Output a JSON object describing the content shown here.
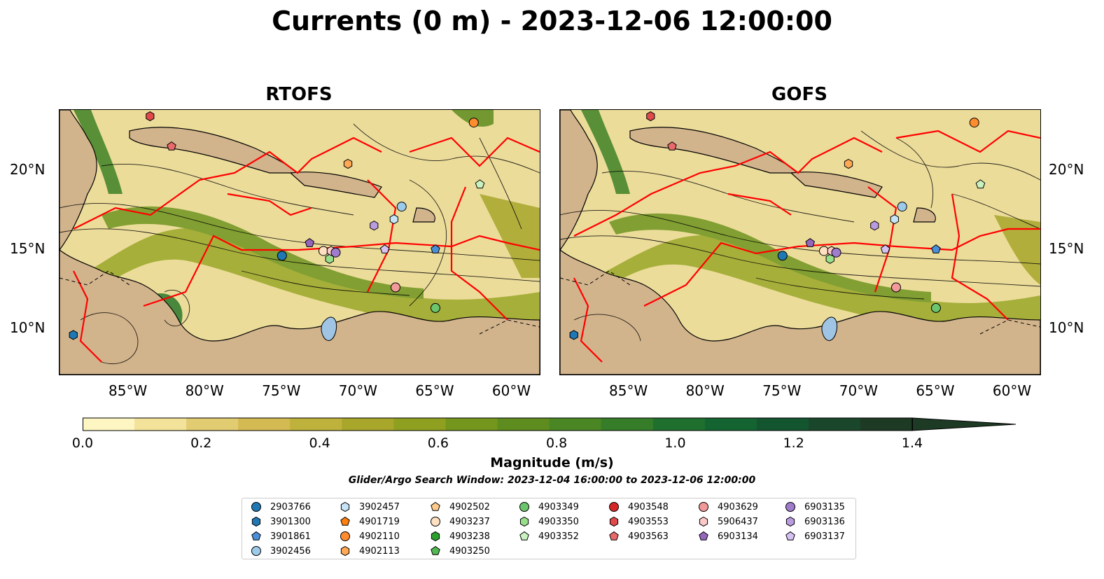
{
  "title": "Currents (0 m) - 2023-12-06 12:00:00",
  "panels": [
    {
      "id": "rtofs",
      "title": "RTOFS"
    },
    {
      "id": "gofs",
      "title": "GOFS"
    }
  ],
  "axes": {
    "x_ticks": [
      "85°W",
      "80°W",
      "75°W",
      "70°W",
      "65°W",
      "60°W"
    ],
    "y_ticks": [
      "20°N",
      "15°N",
      "10°N"
    ]
  },
  "colorbar": {
    "label": "Magnitude (m/s)",
    "ticks": [
      "0.0",
      "0.2",
      "0.4",
      "0.6",
      "0.8",
      "1.0",
      "1.2",
      "1.4"
    ],
    "colors": [
      "#fdf6c2",
      "#f3e39a",
      "#e2cc72",
      "#d3ba52",
      "#bfb23c",
      "#a9a62c",
      "#8fa020",
      "#74961c",
      "#5e8c1e",
      "#4a8624",
      "#357d28",
      "#1f702e",
      "#146431",
      "#13552f",
      "#1a472c",
      "#1d3a24"
    ],
    "extend": "max"
  },
  "search_window": "Glider/Argo Search Window: 2023-12-04 16:00:00 to 2023-12-06 12:00:00",
  "legend": {
    "columns": [
      [
        {
          "id": "2903766",
          "color": "#1f77b4",
          "marker": "circle"
        },
        {
          "id": "3901300",
          "color": "#1f77b4",
          "marker": "hexagon"
        },
        {
          "id": "3901861",
          "color": "#4a90d9",
          "marker": "pentagon"
        },
        {
          "id": "3902456",
          "color": "#9ecae9",
          "marker": "circle"
        }
      ],
      [
        {
          "id": "3902457",
          "color": "#c6e4f7",
          "marker": "hexagon"
        },
        {
          "id": "4901719",
          "color": "#ff7f0e",
          "marker": "pentagon"
        },
        {
          "id": "4902110",
          "color": "#ff8c2e",
          "marker": "circle"
        },
        {
          "id": "4902113",
          "color": "#ffa955",
          "marker": "hexagon"
        }
      ],
      [
        {
          "id": "4902502",
          "color": "#ffc98a",
          "marker": "pentagon"
        },
        {
          "id": "4903237",
          "color": "#ffe0c0",
          "marker": "circle"
        },
        {
          "id": "4903238",
          "color": "#2ca02c",
          "marker": "hexagon"
        },
        {
          "id": "4903250",
          "color": "#52b952",
          "marker": "pentagon"
        }
      ],
      [
        {
          "id": "4903349",
          "color": "#6cc46c",
          "marker": "circle"
        },
        {
          "id": "4903350",
          "color": "#98df8a",
          "marker": "hexagon"
        },
        {
          "id": "4903352",
          "color": "#c9f2c0",
          "marker": "pentagon"
        }
      ],
      [
        {
          "id": "4903548",
          "color": "#d62728",
          "marker": "circle"
        },
        {
          "id": "4903553",
          "color": "#e04a4a",
          "marker": "hexagon"
        },
        {
          "id": "4903563",
          "color": "#e86a6a",
          "marker": "pentagon"
        }
      ],
      [
        {
          "id": "4903629",
          "color": "#f29a9a",
          "marker": "circle"
        },
        {
          "id": "5906437",
          "color": "#fcc9c9",
          "marker": "hexagon"
        },
        {
          "id": "6903134",
          "color": "#9467bd",
          "marker": "pentagon"
        }
      ],
      [
        {
          "id": "6903135",
          "color": "#a07ccc",
          "marker": "circle"
        },
        {
          "id": "6903136",
          "color": "#bb9be0",
          "marker": "hexagon"
        },
        {
          "id": "6903137",
          "color": "#d6c2f2",
          "marker": "pentagon"
        }
      ]
    ]
  },
  "floats_on_map": [
    {
      "id": "2903766",
      "lon": -75.0,
      "lat": 14.6
    },
    {
      "id": "3901300",
      "lon": -88.6,
      "lat": 9.6
    },
    {
      "id": "3901861",
      "lon": -65.0,
      "lat": 15.0
    },
    {
      "id": "3902456",
      "lon": -67.2,
      "lat": 17.7
    },
    {
      "id": "3902457",
      "lon": -67.7,
      "lat": 16.9
    },
    {
      "id": "4902110",
      "lon": -62.5,
      "lat": 23.0
    },
    {
      "id": "4902113",
      "lon": -70.7,
      "lat": 20.4
    },
    {
      "id": "4903237",
      "lon": -72.3,
      "lat": 14.9
    },
    {
      "id": "4903349",
      "lon": -65.0,
      "lat": 11.3
    },
    {
      "id": "4903350",
      "lon": -71.9,
      "lat": 14.4
    },
    {
      "id": "4903352",
      "lon": -62.1,
      "lat": 19.1
    },
    {
      "id": "4903553",
      "lon": -83.6,
      "lat": 23.4
    },
    {
      "id": "4903563",
      "lon": -82.2,
      "lat": 21.5
    },
    {
      "id": "4903629",
      "lon": -67.6,
      "lat": 12.6
    },
    {
      "id": "5906437",
      "lon": -71.8,
      "lat": 14.9
    },
    {
      "id": "6903134",
      "lon": -73.2,
      "lat": 15.4
    },
    {
      "id": "6903135",
      "lon": -71.5,
      "lat": 14.8
    },
    {
      "id": "6903136",
      "lon": -69.0,
      "lat": 16.5
    },
    {
      "id": "6903137",
      "lon": -68.3,
      "lat": 15.0
    }
  ]
}
